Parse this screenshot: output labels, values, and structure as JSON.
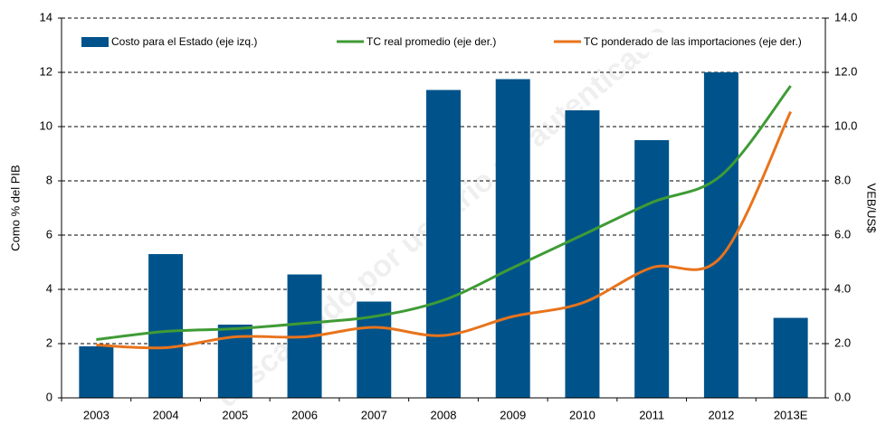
{
  "chart_data": {
    "type": "bar_line",
    "y_label": "Como % del PIB",
    "y2_label": "VEB/US$",
    "watermark": "descargado por usuario no autenticado",
    "categories": [
      "2003",
      "2004",
      "2005",
      "2006",
      "2007",
      "2008",
      "2009",
      "2010",
      "2011",
      "2012",
      "2013E"
    ],
    "series": [
      {
        "name": "Costo para el Estado (eje izq.)",
        "type": "bar",
        "color": "#00538a",
        "values": [
          1.9,
          5.3,
          2.7,
          4.55,
          3.55,
          11.35,
          11.75,
          10.6,
          9.5,
          12.0,
          2.95
        ]
      },
      {
        "name": "TC real promedio (eje der.)",
        "type": "line",
        "axis": "y2",
        "color": "#3f9b35",
        "values": [
          2.15,
          2.45,
          2.55,
          2.75,
          3.0,
          3.6,
          4.8,
          6.0,
          7.2,
          8.2,
          11.5
        ]
      },
      {
        "name": "TC ponderado de las importaciones (eje der.)",
        "type": "line",
        "axis": "y2",
        "color": "#e8731c",
        "values": [
          1.95,
          1.85,
          2.25,
          2.25,
          2.6,
          2.3,
          3.0,
          3.5,
          4.8,
          5.2,
          10.55
        ]
      }
    ],
    "ylim": [
      0,
      14
    ],
    "yticks": [
      0,
      2,
      4,
      6,
      8,
      10,
      12,
      14
    ],
    "y2lim": [
      0,
      14
    ],
    "y2ticks": [
      {
        "value": 0,
        "label": "0.0"
      },
      {
        "value": 2,
        "label": "2.0"
      },
      {
        "value": 4,
        "label": "4.0"
      },
      {
        "value": 6,
        "label": "6.0"
      },
      {
        "value": 8,
        "label": "8.0"
      },
      {
        "value": 10,
        "label": "10.0"
      },
      {
        "value": 12,
        "label": "12.0"
      },
      {
        "value": 14,
        "label": "14.0"
      }
    ],
    "grid": true,
    "legend": "top"
  }
}
